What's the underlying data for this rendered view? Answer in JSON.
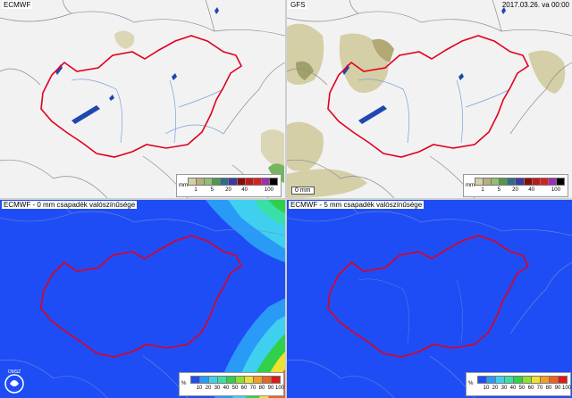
{
  "panels": {
    "top_left": {
      "title": "ECMWF"
    },
    "top_right": {
      "title": "GFS",
      "date": "2017.03.26. va 00:00",
      "scale_label": "0 mm"
    },
    "bottom_left": {
      "title": "ECMWF - 0 mm csapadék valószínűsége",
      "logo_text": "OMSZ"
    },
    "bottom_right": {
      "title": "ECMWF - 5 mm csapadék valószínűsége"
    }
  },
  "legend_precip": {
    "unit": "mm",
    "labels": [
      "1",
      "5",
      "20",
      "40",
      "100"
    ],
    "colors": [
      "#d4cfa8",
      "#b9ad7d",
      "#8fbf70",
      "#4f9a4a",
      "#2e6e88",
      "#3a3aa0",
      "#8a0a0a",
      "#c01818",
      "#d82020",
      "#9b30b0",
      "#000000"
    ]
  },
  "legend_prob": {
    "unit": "%",
    "labels": [
      "10",
      "20",
      "30",
      "40",
      "50",
      "60",
      "70",
      "80",
      "90",
      "100"
    ],
    "colors": [
      "#1f4df5",
      "#2a9af7",
      "#3fd0f0",
      "#38e0a8",
      "#30d04a",
      "#8ce030",
      "#f0e030",
      "#f0a020",
      "#f06020",
      "#e01818"
    ]
  }
}
